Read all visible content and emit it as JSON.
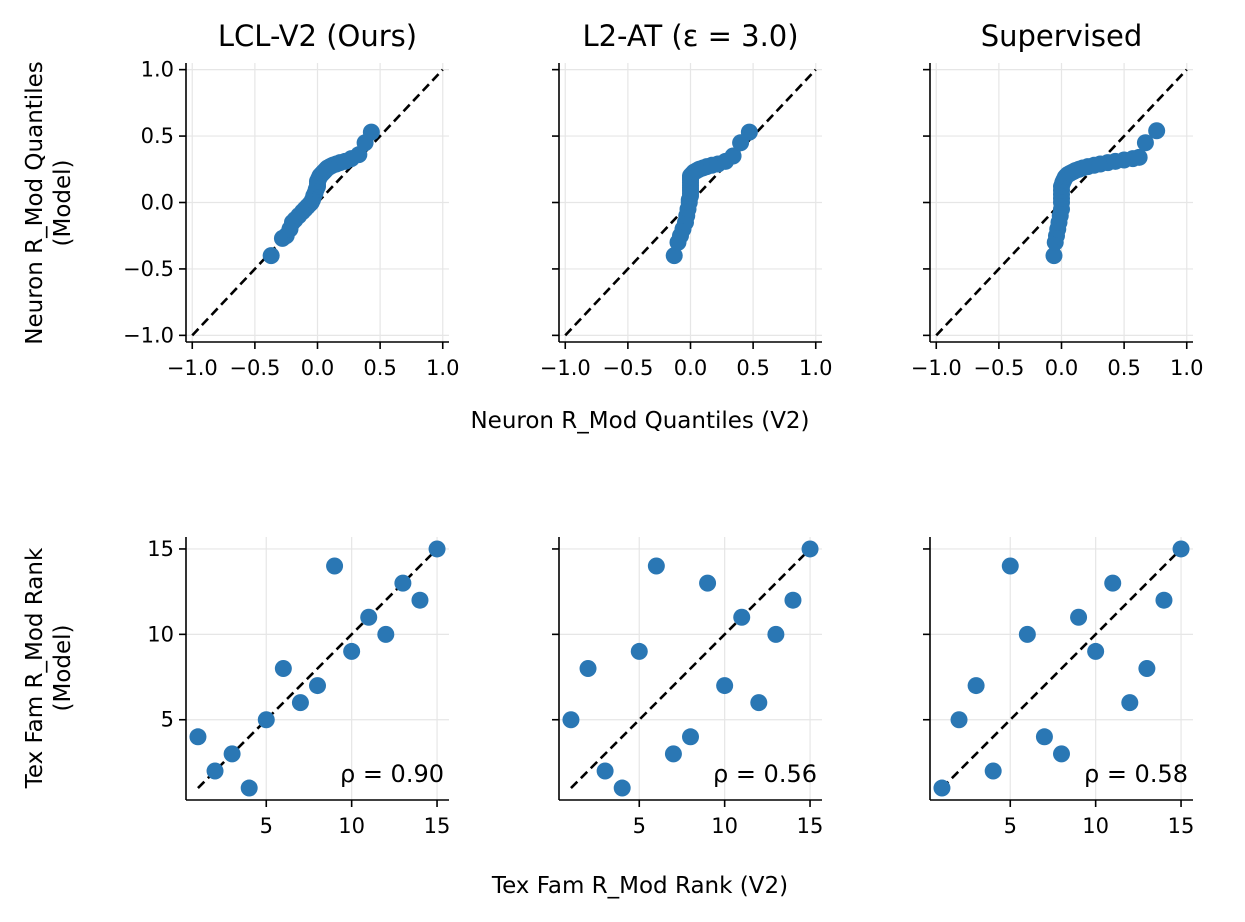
{
  "colors": {
    "point": "#2a77b4",
    "grid": "#e6e6e6",
    "diagonal": "#000000"
  },
  "labels": {
    "top_x": "Neuron R_Mod Quantiles (V2)",
    "top_y_line1": "Neuron R_Mod Quantiles",
    "top_y_line2": "(Model)",
    "bottom_x": "Tex Fam R_Mod Rank (V2)",
    "bottom_y_line1": "Tex Fam R_Mod Rank",
    "bottom_y_line2": "(Model)"
  },
  "chart_data": [
    {
      "type": "scatter",
      "row": "quantile",
      "title": "LCL-V2 (Ours)",
      "xlim": [
        -1.05,
        1.05
      ],
      "ylim": [
        -1.05,
        1.05
      ],
      "xticks": [
        -1.0,
        -0.5,
        0.0,
        0.5,
        1.0
      ],
      "yticks": [
        -1.0,
        -0.5,
        0.0,
        0.5,
        1.0
      ],
      "xticklabels": [
        "−1.0",
        "−0.5",
        "0.0",
        "0.5",
        "1.0"
      ],
      "yticklabels": [
        "−1.0",
        "−0.5",
        "0.0",
        "0.5",
        "1.0"
      ],
      "diagonal": [
        [
          -1,
          -1
        ],
        [
          1,
          1
        ]
      ],
      "x": [
        -0.37,
        -0.28,
        -0.25,
        -0.22,
        -0.2,
        -0.18,
        -0.15,
        -0.12,
        -0.1,
        -0.08,
        -0.06,
        -0.05,
        -0.04,
        -0.03,
        -0.02,
        -0.01,
        0.0,
        0.0,
        0.0,
        0.01,
        0.02,
        0.03,
        0.04,
        0.05,
        0.06,
        0.07,
        0.08,
        0.1,
        0.12,
        0.15,
        0.18,
        0.22,
        0.27,
        0.33,
        0.38,
        0.43
      ],
      "y": [
        -0.4,
        -0.27,
        -0.25,
        -0.2,
        -0.15,
        -0.13,
        -0.1,
        -0.07,
        -0.05,
        -0.03,
        -0.01,
        0.0,
        0.02,
        0.05,
        0.07,
        0.1,
        0.12,
        0.14,
        0.16,
        0.18,
        0.2,
        0.21,
        0.22,
        0.23,
        0.24,
        0.25,
        0.26,
        0.27,
        0.28,
        0.29,
        0.3,
        0.31,
        0.33,
        0.36,
        0.45,
        0.53
      ]
    },
    {
      "type": "scatter",
      "row": "quantile",
      "title": "L2-AT (ε = 3.0)",
      "xlim": [
        -1.05,
        1.05
      ],
      "ylim": [
        -1.05,
        1.05
      ],
      "xticks": [
        -1.0,
        -0.5,
        0.0,
        0.5,
        1.0
      ],
      "yticks": [
        -1.0,
        -0.5,
        0.0,
        0.5,
        1.0
      ],
      "xticklabels": [
        "−1.0",
        "−0.5",
        "0.0",
        "0.5",
        "1.0"
      ],
      "diagonal": [
        [
          -1,
          -1
        ],
        [
          1,
          1
        ]
      ],
      "x": [
        -0.13,
        -0.1,
        -0.08,
        -0.06,
        -0.04,
        -0.03,
        -0.02,
        -0.01,
        -0.01,
        0.0,
        0.0,
        0.0,
        0.0,
        0.0,
        0.0,
        0.0,
        0.0,
        0.0,
        0.0,
        0.01,
        0.02,
        0.03,
        0.05,
        0.07,
        0.1,
        0.13,
        0.17,
        0.22,
        0.28,
        0.34,
        0.4,
        0.47
      ],
      "y": [
        -0.4,
        -0.3,
        -0.25,
        -0.2,
        -0.15,
        -0.1,
        -0.05,
        0.0,
        0.02,
        0.05,
        0.07,
        0.09,
        0.11,
        0.13,
        0.15,
        0.17,
        0.18,
        0.19,
        0.2,
        0.21,
        0.22,
        0.23,
        0.24,
        0.25,
        0.26,
        0.27,
        0.28,
        0.29,
        0.31,
        0.35,
        0.45,
        0.53
      ]
    },
    {
      "type": "scatter",
      "row": "quantile",
      "title": "Supervised",
      "xlim": [
        -1.05,
        1.05
      ],
      "ylim": [
        -1.05,
        1.05
      ],
      "xticks": [
        -1.0,
        -0.5,
        0.0,
        0.5,
        1.0
      ],
      "yticks": [
        -1.0,
        -0.5,
        0.0,
        0.5,
        1.0
      ],
      "xticklabels": [
        "−1.0",
        "−0.5",
        "0.0",
        "0.5",
        "1.0"
      ],
      "diagonal": [
        [
          -1,
          -1
        ],
        [
          1,
          1
        ]
      ],
      "x": [
        -0.06,
        -0.05,
        -0.04,
        -0.03,
        -0.02,
        -0.01,
        0.0,
        0.0,
        0.0,
        0.0,
        0.0,
        0.0,
        0.01,
        0.02,
        0.03,
        0.04,
        0.05,
        0.07,
        0.09,
        0.11,
        0.14,
        0.17,
        0.21,
        0.26,
        0.31,
        0.37,
        0.43,
        0.5,
        0.57,
        0.62,
        0.67,
        0.76
      ],
      "y": [
        -0.4,
        -0.3,
        -0.25,
        -0.2,
        -0.15,
        -0.1,
        -0.05,
        0.0,
        0.03,
        0.06,
        0.09,
        0.12,
        0.15,
        0.17,
        0.19,
        0.2,
        0.21,
        0.22,
        0.23,
        0.24,
        0.25,
        0.26,
        0.27,
        0.28,
        0.29,
        0.3,
        0.31,
        0.32,
        0.33,
        0.34,
        0.45,
        0.54
      ]
    },
    {
      "type": "scatter",
      "row": "rank",
      "title": "",
      "xlim": [
        0.3,
        15.7
      ],
      "ylim": [
        0.3,
        15.7
      ],
      "xticks": [
        5,
        10,
        15
      ],
      "yticks": [
        5,
        10,
        15
      ],
      "xticklabels": [
        "5",
        "10",
        "15"
      ],
      "yticklabels": [
        "5",
        "10",
        "15"
      ],
      "diagonal": [
        [
          1,
          1
        ],
        [
          15,
          15
        ]
      ],
      "x": [
        1,
        2,
        3,
        4,
        5,
        6,
        7,
        8,
        9,
        10,
        11,
        12,
        13,
        14,
        15
      ],
      "y": [
        4,
        2,
        3,
        1,
        5,
        8,
        6,
        7,
        14,
        9,
        11,
        10,
        13,
        12,
        15
      ],
      "rho_label": "ρ = 0.90"
    },
    {
      "type": "scatter",
      "row": "rank",
      "title": "",
      "xlim": [
        0.3,
        15.7
      ],
      "ylim": [
        0.3,
        15.7
      ],
      "xticks": [
        5,
        10,
        15
      ],
      "yticks": [
        5,
        10,
        15
      ],
      "xticklabels": [
        "5",
        "10",
        "15"
      ],
      "diagonal": [
        [
          1,
          1
        ],
        [
          15,
          15
        ]
      ],
      "x": [
        1,
        2,
        3,
        4,
        5,
        6,
        7,
        8,
        9,
        10,
        11,
        12,
        13,
        14,
        15
      ],
      "y": [
        5,
        8,
        2,
        1,
        9,
        14,
        3,
        4,
        13,
        7,
        11,
        6,
        10,
        12,
        15
      ],
      "rho_label": "ρ = 0.56"
    },
    {
      "type": "scatter",
      "row": "rank",
      "title": "",
      "xlim": [
        0.3,
        15.7
      ],
      "ylim": [
        0.3,
        15.7
      ],
      "xticks": [
        5,
        10,
        15
      ],
      "yticks": [
        5,
        10,
        15
      ],
      "xticklabels": [
        "5",
        "10",
        "15"
      ],
      "diagonal": [
        [
          1,
          1
        ],
        [
          15,
          15
        ]
      ],
      "x": [
        1,
        2,
        3,
        4,
        5,
        6,
        7,
        8,
        9,
        10,
        11,
        12,
        13,
        14,
        15
      ],
      "y": [
        1,
        5,
        7,
        2,
        14,
        10,
        4,
        3,
        11,
        9,
        13,
        6,
        8,
        12,
        15
      ],
      "rho_label": "ρ = 0.58"
    }
  ]
}
